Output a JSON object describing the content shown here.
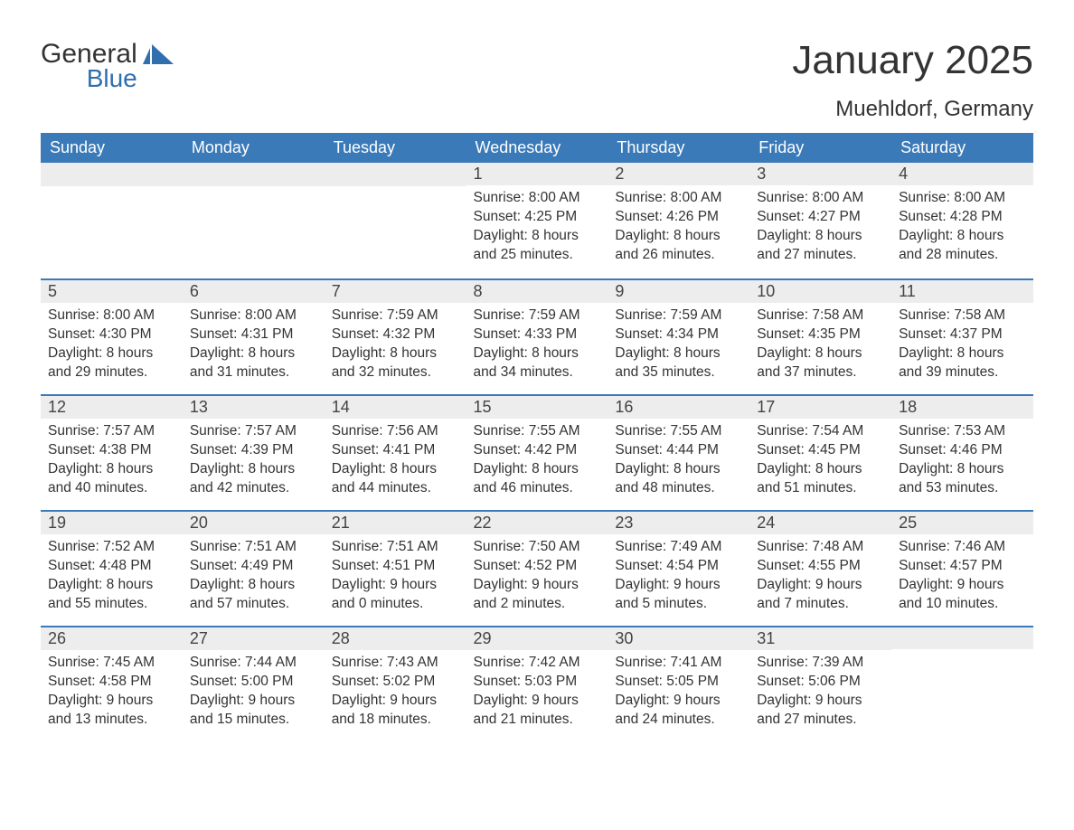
{
  "brand": {
    "word1": "General",
    "word2": "Blue",
    "color_text": "#333333",
    "color_blue": "#2f6fb0"
  },
  "title": "January 2025",
  "location": "Muehldorf, Germany",
  "colors": {
    "header_bg": "#3b7ab8",
    "header_text": "#ffffff",
    "daynum_bg": "#ededed",
    "row_divider": "#3b7ab8",
    "body_text": "#333333",
    "page_bg": "#ffffff"
  },
  "weekdays": [
    "Sunday",
    "Monday",
    "Tuesday",
    "Wednesday",
    "Thursday",
    "Friday",
    "Saturday"
  ],
  "labels": {
    "sunrise": "Sunrise:",
    "sunset": "Sunset:",
    "daylight": "Daylight:"
  },
  "weeks": [
    [
      null,
      null,
      null,
      {
        "n": "1",
        "sunrise": "8:00 AM",
        "sunset": "4:25 PM",
        "daylight": "8 hours and 25 minutes."
      },
      {
        "n": "2",
        "sunrise": "8:00 AM",
        "sunset": "4:26 PM",
        "daylight": "8 hours and 26 minutes."
      },
      {
        "n": "3",
        "sunrise": "8:00 AM",
        "sunset": "4:27 PM",
        "daylight": "8 hours and 27 minutes."
      },
      {
        "n": "4",
        "sunrise": "8:00 AM",
        "sunset": "4:28 PM",
        "daylight": "8 hours and 28 minutes."
      }
    ],
    [
      {
        "n": "5",
        "sunrise": "8:00 AM",
        "sunset": "4:30 PM",
        "daylight": "8 hours and 29 minutes."
      },
      {
        "n": "6",
        "sunrise": "8:00 AM",
        "sunset": "4:31 PM",
        "daylight": "8 hours and 31 minutes."
      },
      {
        "n": "7",
        "sunrise": "7:59 AM",
        "sunset": "4:32 PM",
        "daylight": "8 hours and 32 minutes."
      },
      {
        "n": "8",
        "sunrise": "7:59 AM",
        "sunset": "4:33 PM",
        "daylight": "8 hours and 34 minutes."
      },
      {
        "n": "9",
        "sunrise": "7:59 AM",
        "sunset": "4:34 PM",
        "daylight": "8 hours and 35 minutes."
      },
      {
        "n": "10",
        "sunrise": "7:58 AM",
        "sunset": "4:35 PM",
        "daylight": "8 hours and 37 minutes."
      },
      {
        "n": "11",
        "sunrise": "7:58 AM",
        "sunset": "4:37 PM",
        "daylight": "8 hours and 39 minutes."
      }
    ],
    [
      {
        "n": "12",
        "sunrise": "7:57 AM",
        "sunset": "4:38 PM",
        "daylight": "8 hours and 40 minutes."
      },
      {
        "n": "13",
        "sunrise": "7:57 AM",
        "sunset": "4:39 PM",
        "daylight": "8 hours and 42 minutes."
      },
      {
        "n": "14",
        "sunrise": "7:56 AM",
        "sunset": "4:41 PM",
        "daylight": "8 hours and 44 minutes."
      },
      {
        "n": "15",
        "sunrise": "7:55 AM",
        "sunset": "4:42 PM",
        "daylight": "8 hours and 46 minutes."
      },
      {
        "n": "16",
        "sunrise": "7:55 AM",
        "sunset": "4:44 PM",
        "daylight": "8 hours and 48 minutes."
      },
      {
        "n": "17",
        "sunrise": "7:54 AM",
        "sunset": "4:45 PM",
        "daylight": "8 hours and 51 minutes."
      },
      {
        "n": "18",
        "sunrise": "7:53 AM",
        "sunset": "4:46 PM",
        "daylight": "8 hours and 53 minutes."
      }
    ],
    [
      {
        "n": "19",
        "sunrise": "7:52 AM",
        "sunset": "4:48 PM",
        "daylight": "8 hours and 55 minutes."
      },
      {
        "n": "20",
        "sunrise": "7:51 AM",
        "sunset": "4:49 PM",
        "daylight": "8 hours and 57 minutes."
      },
      {
        "n": "21",
        "sunrise": "7:51 AM",
        "sunset": "4:51 PM",
        "daylight": "9 hours and 0 minutes."
      },
      {
        "n": "22",
        "sunrise": "7:50 AM",
        "sunset": "4:52 PM",
        "daylight": "9 hours and 2 minutes."
      },
      {
        "n": "23",
        "sunrise": "7:49 AM",
        "sunset": "4:54 PM",
        "daylight": "9 hours and 5 minutes."
      },
      {
        "n": "24",
        "sunrise": "7:48 AM",
        "sunset": "4:55 PM",
        "daylight": "9 hours and 7 minutes."
      },
      {
        "n": "25",
        "sunrise": "7:46 AM",
        "sunset": "4:57 PM",
        "daylight": "9 hours and 10 minutes."
      }
    ],
    [
      {
        "n": "26",
        "sunrise": "7:45 AM",
        "sunset": "4:58 PM",
        "daylight": "9 hours and 13 minutes."
      },
      {
        "n": "27",
        "sunrise": "7:44 AM",
        "sunset": "5:00 PM",
        "daylight": "9 hours and 15 minutes."
      },
      {
        "n": "28",
        "sunrise": "7:43 AM",
        "sunset": "5:02 PM",
        "daylight": "9 hours and 18 minutes."
      },
      {
        "n": "29",
        "sunrise": "7:42 AM",
        "sunset": "5:03 PM",
        "daylight": "9 hours and 21 minutes."
      },
      {
        "n": "30",
        "sunrise": "7:41 AM",
        "sunset": "5:05 PM",
        "daylight": "9 hours and 24 minutes."
      },
      {
        "n": "31",
        "sunrise": "7:39 AM",
        "sunset": "5:06 PM",
        "daylight": "9 hours and 27 minutes."
      },
      null
    ]
  ]
}
